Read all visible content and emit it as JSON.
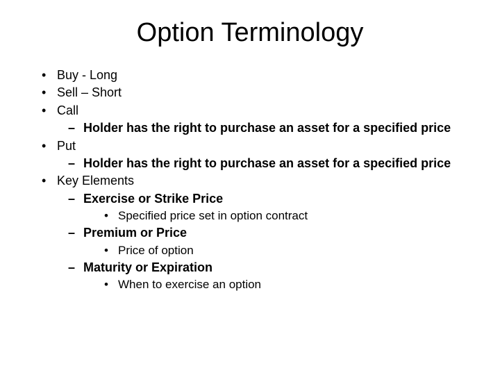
{
  "title": "Option Terminology",
  "items": {
    "buy": "Buy - Long",
    "sell": "Sell – Short",
    "call": "Call",
    "call_desc": "Holder has the right to purchase an asset for a specified price",
    "put": "Put",
    "put_desc": "Holder has the right to purchase an asset for a specified price",
    "key": "Key Elements",
    "strike": "Exercise or Strike Price",
    "strike_desc": "Specified price set in option contract",
    "premium": "Premium or Price",
    "premium_desc": "Price of option",
    "maturity": "Maturity or Expiration",
    "maturity_desc": "When to exercise an option"
  }
}
